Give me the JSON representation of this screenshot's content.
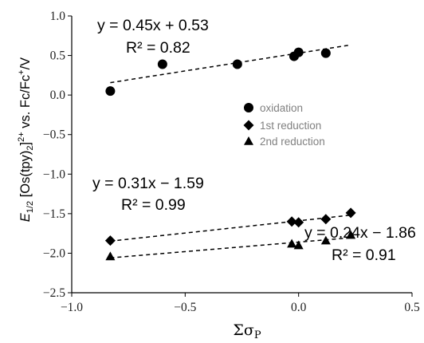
{
  "chart_data": {
    "type": "scatter",
    "xlim": [
      -1.0,
      0.5
    ],
    "ylim": [
      -2.5,
      1.0
    ],
    "x_ticks": [
      "−1.0",
      "−0.5",
      "0.0",
      "0.5"
    ],
    "y_ticks": [
      "1.0",
      "0.5",
      "0.0",
      "−0.5",
      "−1.0",
      "−1.5",
      "−2.0",
      "−2.5"
    ],
    "x_tick_values": [
      -1.0,
      -0.5,
      0.0,
      0.5
    ],
    "y_tick_values": [
      1.0,
      0.5,
      0.0,
      -0.5,
      -1.0,
      -1.5,
      -2.0,
      -2.5
    ],
    "xlabel": "Σσₚ",
    "ylabel": "E1/2 [Os(tpy)2]2+ vs. Fc/Fc+/V",
    "grid": false,
    "legend_position": "upper-right",
    "series": [
      {
        "name": "oxidation",
        "marker": "circle",
        "color": "#000000",
        "x": [
          -0.83,
          -0.6,
          -0.27,
          -0.02,
          0.0,
          0.12
        ],
        "y": [
          0.05,
          0.39,
          0.39,
          0.49,
          0.54,
          0.53
        ],
        "fit": {
          "slope": 0.45,
          "intercept": 0.53,
          "range": [
            -0.83,
            0.23
          ]
        },
        "equation": "y = 0.45x + 0.53",
        "r2": "R² = 0.82"
      },
      {
        "name": "1st reduction",
        "marker": "diamond",
        "color": "#000000",
        "x": [
          -0.83,
          -0.03,
          0.0,
          0.12,
          0.23
        ],
        "y": [
          -1.84,
          -1.6,
          -1.61,
          -1.57,
          -1.49
        ],
        "fit": {
          "slope": 0.31,
          "intercept": -1.59,
          "range": [
            -0.83,
            0.23
          ]
        },
        "equation": "y = 0.31x − 1.59",
        "r2": "R² = 0.99"
      },
      {
        "name": "2nd reduction",
        "marker": "triangle",
        "color": "#000000",
        "x": [
          -0.83,
          -0.03,
          0.0,
          0.12,
          0.23
        ],
        "y": [
          -2.04,
          -1.88,
          -1.9,
          -1.84,
          -1.77
        ],
        "fit": {
          "slope": 0.24,
          "intercept": -1.86,
          "range": [
            -0.83,
            0.23
          ]
        },
        "equation": "y = 0.24x − 1.86",
        "r2": "R² = 0.91"
      }
    ]
  }
}
